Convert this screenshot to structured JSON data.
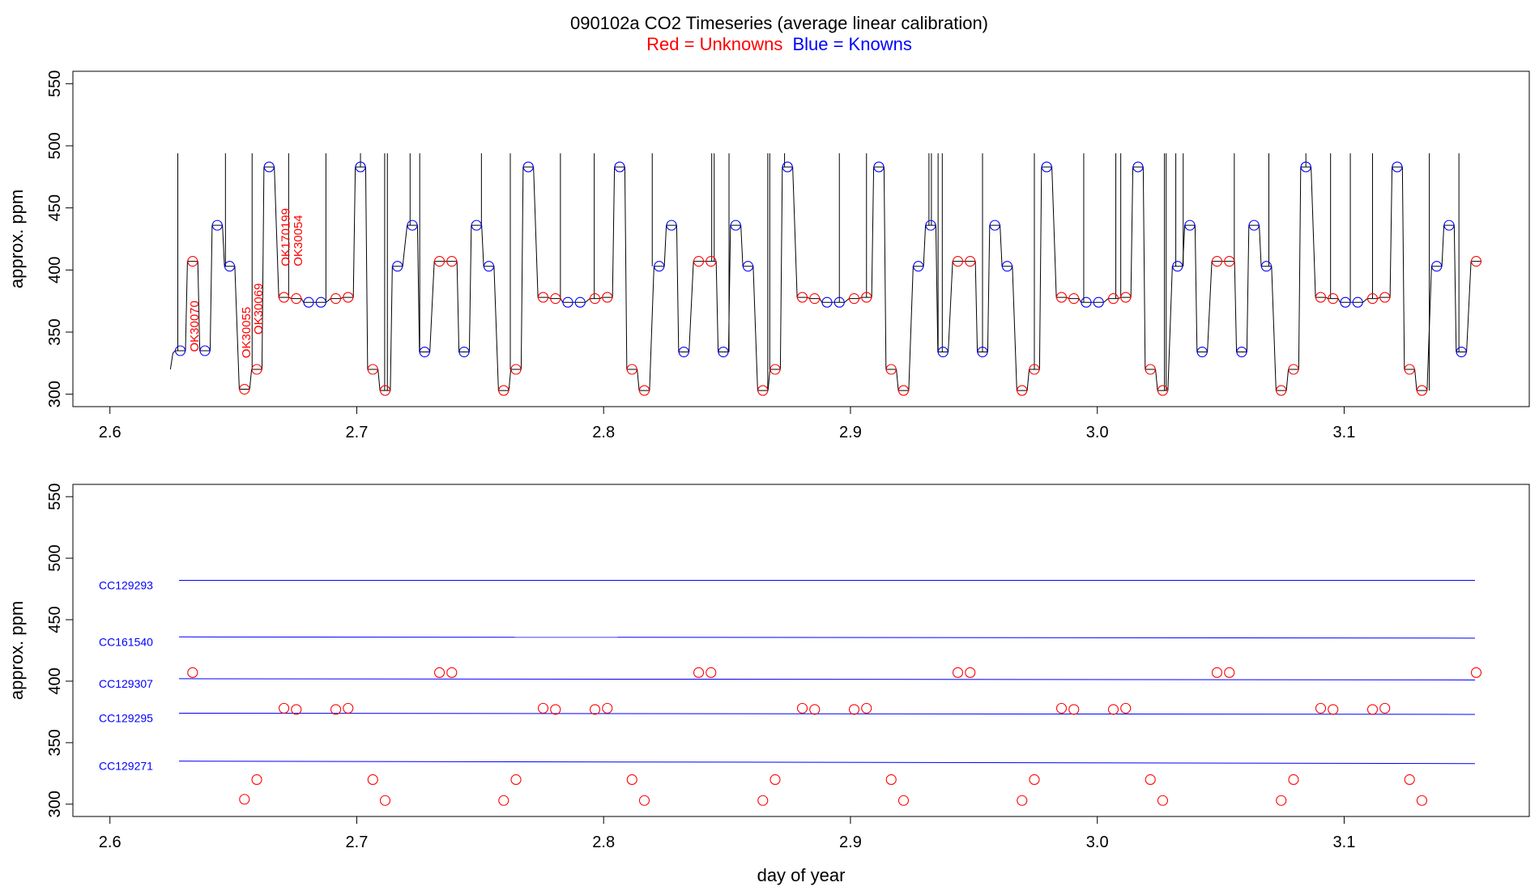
{
  "title": {
    "main": "090102a   CO2 Timeseries (average linear calibration)",
    "legend_red": "Red = Unknowns",
    "legend_blue": "Blue = Knowns"
  },
  "colors": {
    "unknown": "#ff0000",
    "known": "#0000ff",
    "trace": "#000000",
    "axis": "#000000"
  },
  "chart_data": [
    {
      "type": "line",
      "panel": "top",
      "ylabel": "approx. ppm",
      "xlabel": "",
      "xlim": [
        2.585,
        3.175
      ],
      "ylim": [
        290,
        560
      ],
      "x_ticks": [
        "2.6",
        "2.7",
        "2.8",
        "2.9",
        "3.0",
        "3.1"
      ],
      "y_ticks": [
        "300",
        "350",
        "400",
        "450",
        "500",
        "550"
      ],
      "spike_top": 494,
      "spikes_x": [
        2.6275,
        2.6468,
        2.6576,
        2.6724,
        2.6875,
        2.7015,
        2.7113,
        2.7124,
        2.7216,
        2.7255,
        2.7505,
        2.7622,
        2.7825,
        2.7962,
        2.8197,
        2.8438,
        2.8448,
        2.8508,
        2.8665,
        2.8673,
        2.8733,
        2.8955,
        2.9065,
        2.9318,
        2.9328,
        2.9355,
        2.9372,
        2.9535,
        2.9745,
        2.9945,
        3.0075,
        3.0095,
        3.0272,
        3.0279,
        3.0318,
        3.0348,
        3.0555,
        3.0695,
        3.0845,
        3.0945,
        3.1025,
        3.1115,
        3.1345,
        3.1465
      ],
      "series": [
        {
          "name": "Unknowns",
          "color": "#ff0000",
          "points": [
            [
              2.6335,
              407
            ],
            [
              2.6545,
              304
            ],
            [
              2.6595,
              320
            ],
            [
              2.6705,
              378
            ],
            [
              2.6755,
              377
            ],
            [
              2.6915,
              377
            ],
            [
              2.6965,
              378
            ],
            [
              2.7065,
              320
            ],
            [
              2.7115,
              303
            ],
            [
              2.7335,
              407
            ],
            [
              2.7385,
              407
            ],
            [
              2.7595,
              303
            ],
            [
              2.7645,
              320
            ],
            [
              2.7755,
              378
            ],
            [
              2.7805,
              377
            ],
            [
              2.7965,
              377
            ],
            [
              2.8015,
              378
            ],
            [
              2.8115,
              320
            ],
            [
              2.8165,
              303
            ],
            [
              2.8385,
              407
            ],
            [
              2.8435,
              407
            ],
            [
              2.8645,
              303
            ],
            [
              2.8695,
              320
            ],
            [
              2.8805,
              378
            ],
            [
              2.8855,
              377
            ],
            [
              2.9015,
              377
            ],
            [
              2.9065,
              378
            ],
            [
              2.9165,
              320
            ],
            [
              2.9215,
              303
            ],
            [
              2.9435,
              407
            ],
            [
              2.9485,
              407
            ],
            [
              2.9695,
              303
            ],
            [
              2.9745,
              320
            ],
            [
              2.9855,
              378
            ],
            [
              2.9905,
              377
            ],
            [
              3.0065,
              377
            ],
            [
              3.0115,
              378
            ],
            [
              3.0215,
              320
            ],
            [
              3.0265,
              303
            ],
            [
              3.0485,
              407
            ],
            [
              3.0535,
              407
            ],
            [
              3.0745,
              303
            ],
            [
              3.0795,
              320
            ],
            [
              3.0905,
              378
            ],
            [
              3.0955,
              377
            ],
            [
              3.1115,
              377
            ],
            [
              3.1165,
              378
            ],
            [
              3.1265,
              320
            ],
            [
              3.1315,
              303
            ],
            [
              3.1535,
              407
            ]
          ]
        },
        {
          "name": "Knowns",
          "color": "#0000ff",
          "points": [
            [
              2.6285,
              335
            ],
            [
              2.6385,
              335
            ],
            [
              2.6435,
              436
            ],
            [
              2.6485,
              403
            ],
            [
              2.6645,
              483
            ],
            [
              2.6805,
              374
            ],
            [
              2.6855,
              374
            ],
            [
              2.7015,
              483
            ],
            [
              2.7165,
              403
            ],
            [
              2.7225,
              436
            ],
            [
              2.7275,
              334
            ],
            [
              2.7435,
              334
            ],
            [
              2.7485,
              436
            ],
            [
              2.7535,
              403
            ],
            [
              2.7695,
              483
            ],
            [
              2.7855,
              374
            ],
            [
              2.7905,
              374
            ],
            [
              2.8065,
              483
            ],
            [
              2.8225,
              403
            ],
            [
              2.8275,
              436
            ],
            [
              2.8325,
              334
            ],
            [
              2.8485,
              334
            ],
            [
              2.8535,
              436
            ],
            [
              2.8585,
              403
            ],
            [
              2.8745,
              483
            ],
            [
              2.8905,
              374
            ],
            [
              2.8955,
              374
            ],
            [
              2.9115,
              483
            ],
            [
              2.9275,
              403
            ],
            [
              2.9325,
              436
            ],
            [
              2.9375,
              334
            ],
            [
              2.9535,
              334
            ],
            [
              2.9585,
              436
            ],
            [
              2.9635,
              403
            ],
            [
              2.9795,
              483
            ],
            [
              2.9955,
              374
            ],
            [
              3.0005,
              374
            ],
            [
              3.0165,
              483
            ],
            [
              3.0325,
              403
            ],
            [
              3.0375,
              436
            ],
            [
              3.0425,
              334
            ],
            [
              3.0585,
              334
            ],
            [
              3.0635,
              436
            ],
            [
              3.0685,
              403
            ],
            [
              3.0845,
              483
            ],
            [
              3.1005,
              374
            ],
            [
              3.1055,
              374
            ],
            [
              3.1215,
              483
            ],
            [
              3.1375,
              403
            ],
            [
              3.1425,
              436
            ],
            [
              3.1475,
              334
            ]
          ]
        }
      ],
      "annotations": [
        {
          "text": "OK30070",
          "x": 2.6345,
          "y": 334
        },
        {
          "text": "OK30055",
          "x": 2.6555,
          "y": 329
        },
        {
          "text": "OK30069",
          "x": 2.6605,
          "y": 348
        },
        {
          "text": "OK170199",
          "x": 2.6715,
          "y": 403
        },
        {
          "text": "OK30054",
          "x": 2.6765,
          "y": 403
        }
      ]
    },
    {
      "type": "scatter",
      "panel": "bottom",
      "ylabel": "approx. ppm",
      "xlabel": "day of year",
      "xlim": [
        2.585,
        3.175
      ],
      "ylim": [
        290,
        560
      ],
      "x_ticks": [
        "2.6",
        "2.7",
        "2.8",
        "2.9",
        "3.0",
        "3.1"
      ],
      "y_ticks": [
        "300",
        "350",
        "400",
        "450",
        "500",
        "550"
      ],
      "lines": [
        {
          "name": "CC129293",
          "x": [
            2.628,
            3.153
          ],
          "y": [
            482,
            482
          ]
        },
        {
          "name": "CC161540",
          "x": [
            2.628,
            3.153
          ],
          "y": [
            436,
            435
          ]
        },
        {
          "name": "CC129307",
          "x": [
            2.628,
            3.153
          ],
          "y": [
            402,
            401
          ]
        },
        {
          "name": "CC129295",
          "x": [
            2.628,
            3.153
          ],
          "y": [
            374,
            373
          ]
        },
        {
          "name": "CC129271",
          "x": [
            2.628,
            3.153
          ],
          "y": [
            335,
            333
          ]
        }
      ],
      "series": [
        {
          "name": "Unknowns",
          "color": "#ff0000",
          "points": [
            [
              2.6335,
              407
            ],
            [
              2.6545,
              304
            ],
            [
              2.6595,
              320
            ],
            [
              2.6705,
              378
            ],
            [
              2.6755,
              377
            ],
            [
              2.6915,
              377
            ],
            [
              2.6965,
              378
            ],
            [
              2.7065,
              320
            ],
            [
              2.7115,
              303
            ],
            [
              2.7335,
              407
            ],
            [
              2.7385,
              407
            ],
            [
              2.7595,
              303
            ],
            [
              2.7645,
              320
            ],
            [
              2.7755,
              378
            ],
            [
              2.7805,
              377
            ],
            [
              2.7965,
              377
            ],
            [
              2.8015,
              378
            ],
            [
              2.8115,
              320
            ],
            [
              2.8165,
              303
            ],
            [
              2.8385,
              407
            ],
            [
              2.8435,
              407
            ],
            [
              2.8645,
              303
            ],
            [
              2.8695,
              320
            ],
            [
              2.8805,
              378
            ],
            [
              2.8855,
              377
            ],
            [
              2.9015,
              377
            ],
            [
              2.9065,
              378
            ],
            [
              2.9165,
              320
            ],
            [
              2.9215,
              303
            ],
            [
              2.9435,
              407
            ],
            [
              2.9485,
              407
            ],
            [
              2.9695,
              303
            ],
            [
              2.9745,
              320
            ],
            [
              2.9855,
              378
            ],
            [
              2.9905,
              377
            ],
            [
              3.0065,
              377
            ],
            [
              3.0115,
              378
            ],
            [
              3.0215,
              320
            ],
            [
              3.0265,
              303
            ],
            [
              3.0485,
              407
            ],
            [
              3.0535,
              407
            ],
            [
              3.0745,
              303
            ],
            [
              3.0795,
              320
            ],
            [
              3.0905,
              378
            ],
            [
              3.0955,
              377
            ],
            [
              3.1115,
              377
            ],
            [
              3.1165,
              378
            ],
            [
              3.1265,
              320
            ],
            [
              3.1315,
              303
            ],
            [
              3.1535,
              407
            ]
          ]
        }
      ]
    }
  ]
}
